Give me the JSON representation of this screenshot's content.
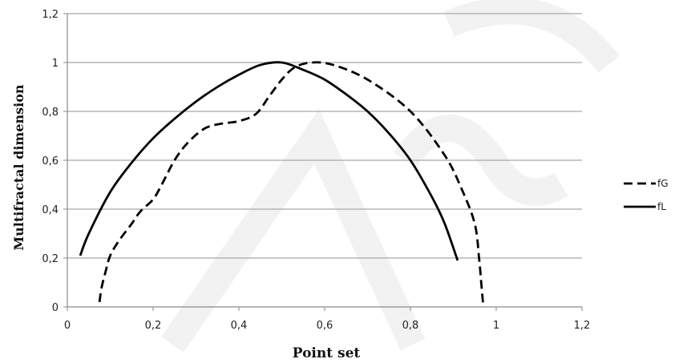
{
  "chart_data": {
    "type": "line",
    "xlabel": "Point set",
    "ylabel": "Multifractal dimension",
    "xlim": [
      0,
      1.2
    ],
    "ylim": [
      0,
      1.2
    ],
    "x_ticks": [
      "0",
      "0,2",
      "0,4",
      "0,6",
      "0,8",
      "1",
      "1,2"
    ],
    "y_ticks": [
      "0",
      "0,2",
      "0,4",
      "0,6",
      "0,8",
      "1",
      "1,2"
    ],
    "grid": "horizontal",
    "legend_position": "right",
    "series": [
      {
        "name": "fG",
        "style": "dashed",
        "color": "#000000",
        "points": [
          [
            0.075,
            0.02
          ],
          [
            0.08,
            0.08
          ],
          [
            0.09,
            0.15
          ],
          [
            0.1,
            0.21
          ],
          [
            0.12,
            0.27
          ],
          [
            0.15,
            0.34
          ],
          [
            0.17,
            0.39
          ],
          [
            0.2,
            0.44
          ],
          [
            0.22,
            0.5
          ],
          [
            0.25,
            0.6
          ],
          [
            0.28,
            0.67
          ],
          [
            0.32,
            0.73
          ],
          [
            0.36,
            0.75
          ],
          [
            0.4,
            0.76
          ],
          [
            0.44,
            0.79
          ],
          [
            0.47,
            0.86
          ],
          [
            0.5,
            0.93
          ],
          [
            0.53,
            0.98
          ],
          [
            0.57,
            1.0
          ],
          [
            0.62,
            0.99
          ],
          [
            0.7,
            0.93
          ],
          [
            0.8,
            0.8
          ],
          [
            0.88,
            0.62
          ],
          [
            0.92,
            0.48
          ],
          [
            0.95,
            0.34
          ],
          [
            0.96,
            0.2
          ],
          [
            0.965,
            0.1
          ],
          [
            0.97,
            0.0
          ]
        ]
      },
      {
        "name": "fL",
        "style": "solid",
        "color": "#000000",
        "points": [
          [
            0.03,
            0.21
          ],
          [
            0.05,
            0.3
          ],
          [
            0.1,
            0.47
          ],
          [
            0.15,
            0.59
          ],
          [
            0.2,
            0.69
          ],
          [
            0.25,
            0.77
          ],
          [
            0.3,
            0.84
          ],
          [
            0.35,
            0.9
          ],
          [
            0.4,
            0.95
          ],
          [
            0.45,
            0.99
          ],
          [
            0.5,
            1.0
          ],
          [
            0.55,
            0.97
          ],
          [
            0.6,
            0.93
          ],
          [
            0.65,
            0.87
          ],
          [
            0.7,
            0.8
          ],
          [
            0.75,
            0.71
          ],
          [
            0.8,
            0.6
          ],
          [
            0.85,
            0.45
          ],
          [
            0.88,
            0.34
          ],
          [
            0.91,
            0.19
          ]
        ]
      }
    ]
  }
}
